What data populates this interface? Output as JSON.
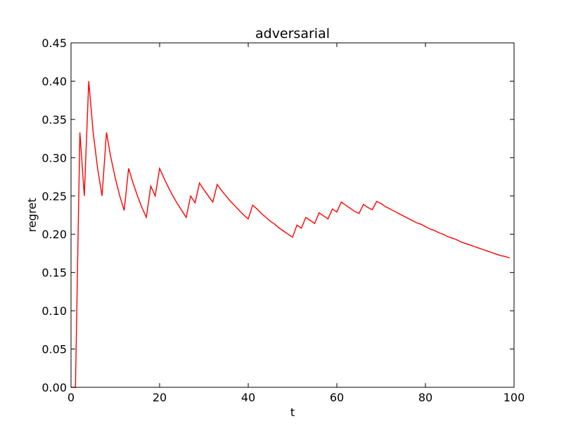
{
  "chart_data": {
    "type": "line",
    "title": "adversarial",
    "xlabel": "t",
    "ylabel": "regret",
    "xlim": [
      0,
      100
    ],
    "ylim": [
      0,
      0.45
    ],
    "xticks": [
      0,
      20,
      40,
      60,
      80,
      100
    ],
    "xtick_labels": [
      "0",
      "20",
      "40",
      "60",
      "80",
      "100"
    ],
    "yticks": [
      0,
      0.05,
      0.1,
      0.15,
      0.2,
      0.25,
      0.3,
      0.35,
      0.4,
      0.45
    ],
    "ytick_labels": [
      "0.00",
      "0.05",
      "0.10",
      "0.15",
      "0.20",
      "0.25",
      "0.30",
      "0.35",
      "0.40",
      "0.45"
    ],
    "grid": false,
    "legend": false,
    "series": [
      {
        "color": "#ff0000",
        "x": [
          0,
          1,
          2,
          3,
          4,
          5,
          6,
          7,
          8,
          9,
          10,
          11,
          12,
          13,
          14,
          15,
          16,
          17,
          18,
          19,
          20,
          21,
          22,
          23,
          24,
          25,
          26,
          27,
          28,
          29,
          30,
          31,
          32,
          33,
          34,
          35,
          36,
          37,
          38,
          39,
          40,
          41,
          42,
          43,
          44,
          45,
          46,
          47,
          48,
          49,
          50,
          51,
          52,
          53,
          54,
          55,
          56,
          57,
          58,
          59,
          60,
          61,
          62,
          63,
          64,
          65,
          66,
          67,
          68,
          69,
          70,
          71,
          72,
          73,
          74,
          75,
          76,
          77,
          78,
          79,
          80,
          81,
          82,
          83,
          84,
          85,
          86,
          87,
          88,
          89,
          90,
          91,
          92,
          93,
          94,
          95,
          96,
          97,
          98,
          99
        ],
        "y": [
          0.0,
          0.0,
          0.333,
          0.25,
          0.4,
          0.333,
          0.286,
          0.25,
          0.333,
          0.3,
          0.273,
          0.25,
          0.231,
          0.286,
          0.267,
          0.25,
          0.235,
          0.222,
          0.263,
          0.25,
          0.286,
          0.273,
          0.261,
          0.25,
          0.24,
          0.231,
          0.222,
          0.25,
          0.241,
          0.267,
          0.258,
          0.25,
          0.242,
          0.265,
          0.257,
          0.25,
          0.243,
          0.237,
          0.231,
          0.225,
          0.22,
          0.238,
          0.233,
          0.227,
          0.222,
          0.217,
          0.213,
          0.208,
          0.204,
          0.2,
          0.196,
          0.212,
          0.208,
          0.222,
          0.218,
          0.214,
          0.228,
          0.224,
          0.22,
          0.233,
          0.229,
          0.242,
          0.238,
          0.234,
          0.23,
          0.227,
          0.239,
          0.235,
          0.232,
          0.243,
          0.24,
          0.236,
          0.233,
          0.23,
          0.227,
          0.224,
          0.221,
          0.218,
          0.215,
          0.213,
          0.21,
          0.207,
          0.205,
          0.202,
          0.2,
          0.197,
          0.195,
          0.193,
          0.19,
          0.188,
          0.186,
          0.184,
          0.182,
          0.18,
          0.178,
          0.176,
          0.174,
          0.172,
          0.171,
          0.169
        ]
      }
    ]
  }
}
